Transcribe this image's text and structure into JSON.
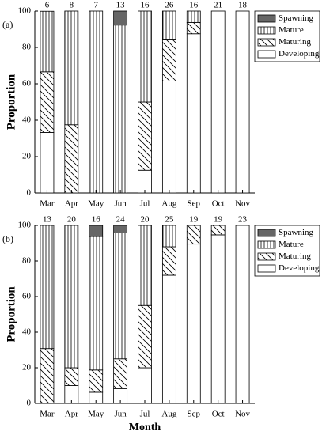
{
  "chart_data": [
    {
      "type": "bar",
      "stacked": true,
      "panel_label": "(a)",
      "y_label": "Proportion",
      "categories": [
        "Mar",
        "Apr",
        "May",
        "Jun",
        "Jul",
        "Aug",
        "Sep",
        "Oct",
        "Nov"
      ],
      "counts": [
        6,
        8,
        7,
        13,
        16,
        26,
        16,
        21,
        18
      ],
      "series": [
        {
          "name": "Developing",
          "color": "#ffffff",
          "pattern": "none",
          "values": [
            33.3,
            0,
            0,
            0,
            12.5,
            61.5,
            87.5,
            100,
            100
          ]
        },
        {
          "name": "Maturing",
          "color": "#ffffff",
          "pattern": "diagonal",
          "values": [
            33.3,
            37.5,
            0,
            0,
            37.5,
            23.1,
            6.25,
            0,
            0
          ]
        },
        {
          "name": "Mature",
          "color": "#ffffff",
          "pattern": "vertical",
          "values": [
            33.3,
            62.5,
            100,
            92.3,
            50,
            15.4,
            6.25,
            0,
            0
          ]
        },
        {
          "name": "Spawning",
          "color": "#666666",
          "pattern": "none",
          "values": [
            0,
            0,
            0,
            7.7,
            0,
            0,
            0,
            0,
            0
          ]
        }
      ],
      "ylim": [
        0,
        100
      ],
      "yticks": [
        0,
        20,
        40,
        60,
        80,
        100
      ],
      "grid": false,
      "legend": "upper right"
    },
    {
      "type": "bar",
      "stacked": true,
      "panel_label": "(b)",
      "y_label": "Proportion",
      "x_label": "Month",
      "categories": [
        "Mar",
        "Apr",
        "May",
        "Jun",
        "Jul",
        "Aug",
        "Sep",
        "Oct",
        "Nov"
      ],
      "counts": [
        13,
        20,
        16,
        24,
        20,
        25,
        19,
        19,
        23
      ],
      "series": [
        {
          "name": "Developing",
          "color": "#ffffff",
          "pattern": "none",
          "values": [
            0,
            10,
            6.25,
            8.3,
            20,
            72,
            89.5,
            94.7,
            100
          ]
        },
        {
          "name": "Maturing",
          "color": "#ffffff",
          "pattern": "diagonal",
          "values": [
            30.8,
            10,
            12.5,
            16.7,
            35,
            16,
            10.5,
            5.3,
            0
          ]
        },
        {
          "name": "Mature",
          "color": "#ffffff",
          "pattern": "vertical",
          "values": [
            69.2,
            80,
            75,
            70.8,
            45,
            12,
            0,
            0,
            0
          ]
        },
        {
          "name": "Spawning",
          "color": "#666666",
          "pattern": "none",
          "values": [
            0,
            0,
            6.25,
            4.2,
            0,
            0,
            0,
            0,
            0
          ]
        }
      ],
      "ylim": [
        0,
        100
      ],
      "yticks": [
        0,
        20,
        40,
        60,
        80,
        100
      ],
      "grid": false,
      "legend": "upper right"
    }
  ]
}
